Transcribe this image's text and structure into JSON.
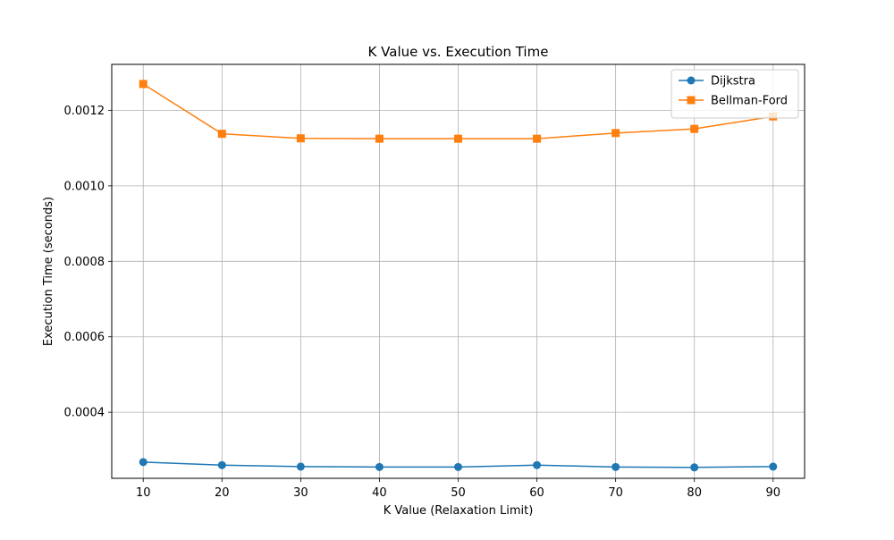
{
  "chart_data": {
    "type": "line",
    "title": "K Value vs. Execution Time",
    "xlabel": "K Value (Relaxation Limit)",
    "ylabel": "Execution Time (seconds)",
    "x": [
      10,
      20,
      30,
      40,
      50,
      60,
      70,
      80,
      90
    ],
    "x_ticks": [
      10,
      20,
      30,
      40,
      50,
      60,
      70,
      80,
      90
    ],
    "x_tick_labels": [
      "10",
      "20",
      "30",
      "40",
      "50",
      "60",
      "70",
      "80",
      "90"
    ],
    "y_ticks": [
      0.0004,
      0.0006,
      0.0008,
      0.001,
      0.0012
    ],
    "y_tick_labels": [
      "0.0004",
      "0.0006",
      "0.0008",
      "0.0010",
      "0.0012"
    ],
    "xlim": [
      6,
      94
    ],
    "ylim": [
      0.000225,
      0.001322
    ],
    "grid": true,
    "legend_position": "top-right",
    "series": [
      {
        "name": "Dijkstra",
        "color": "#1f77b4",
        "marker": "circle",
        "values": [
          0.000268,
          0.00026,
          0.000256,
          0.000255,
          0.000255,
          0.00026,
          0.000255,
          0.000254,
          0.000256
        ]
      },
      {
        "name": "Bellman-Ford",
        "color": "#ff7f0e",
        "marker": "square",
        "values": [
          0.00127,
          0.001138,
          0.001126,
          0.001125,
          0.001125,
          0.001125,
          0.00114,
          0.001151,
          0.001184
        ]
      }
    ]
  }
}
